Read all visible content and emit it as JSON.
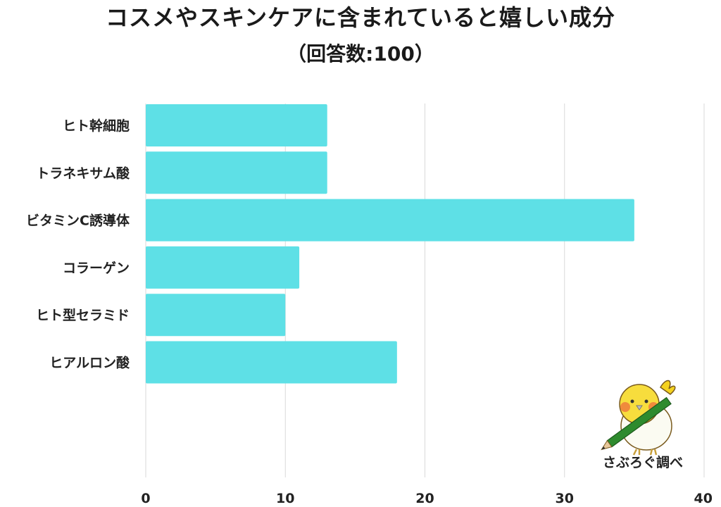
{
  "chart_data": {
    "type": "bar",
    "orientation": "horizontal",
    "title": "コスメやスキンケアに含まれていると嬉しい成分",
    "subtitle": "（回答数:100）",
    "categories": [
      "ヒト幹細胞",
      "トラネキサム酸",
      "ビタミンC誘導体",
      "コラーゲン",
      "ヒト型セラミド",
      "ヒアルロン酸"
    ],
    "values": [
      13,
      13,
      35,
      11,
      10,
      18
    ],
    "xlim": [
      0,
      40
    ],
    "xticks": [
      0,
      10,
      20,
      30,
      40
    ],
    "grid": true,
    "bar_color": "#5ee0e6",
    "grid_color": "#d9d9d9"
  },
  "watermark": {
    "text": "さぶろぐ調べ",
    "icon": "bird-mascot-with-pencil-icon"
  }
}
